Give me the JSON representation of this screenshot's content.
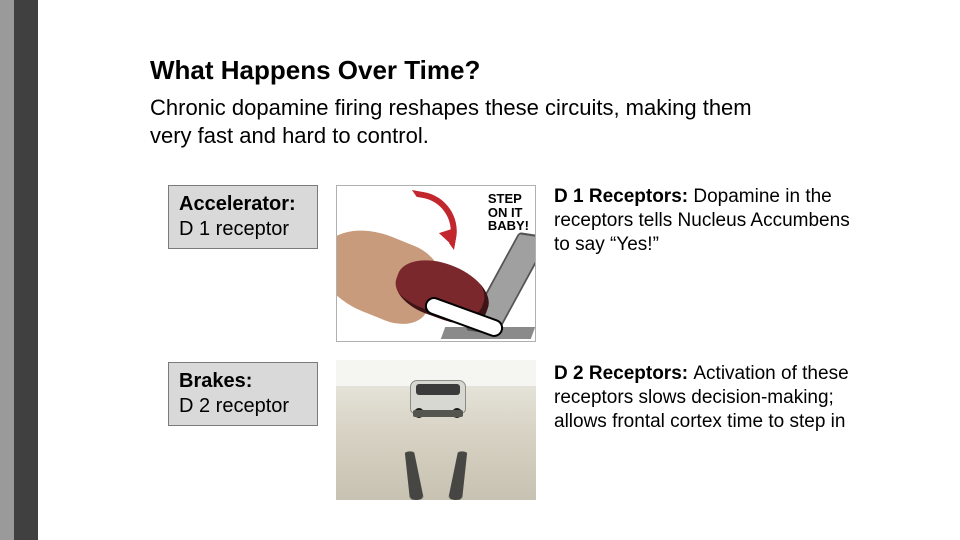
{
  "colors": {
    "stripe_dark": "#404040",
    "stripe_light": "#9a9a9a",
    "label_box_bg": "#d9d9d9",
    "label_box_border": "#7a7a7a",
    "accent_red": "#c1272d",
    "shoe": "#7a282c",
    "text": "#000000",
    "background": "#ffffff"
  },
  "typography": {
    "family": "Arial",
    "title_size_pt": 20,
    "subtitle_size_pt": 17,
    "label_size_pt": 15,
    "desc_size_pt": 14
  },
  "title": "What Happens Over Time?",
  "subtitle": "Chronic dopamine firing reshapes these circuits,  making them very fast and hard to control.",
  "rows": [
    {
      "label_bold": "Accelerator:",
      "label_line": "D 1 receptor",
      "image": {
        "kind": "accelerator-cartoon",
        "caption_lines": [
          "STEP",
          "ON IT",
          "BABY!"
        ]
      },
      "desc_bold": "D 1 Receptors:  ",
      "desc_rest": "Dopamine in the receptors tells Nucleus Accumbens to say “Yes!”"
    },
    {
      "label_bold": "Brakes:",
      "label_line": "D 2 receptor",
      "image": {
        "kind": "braking-car"
      },
      "desc_bold": "D 2 Receptors:  ",
      "desc_rest": "Activation of these receptors slows decision-making; allows frontal cortex time to step in"
    }
  ]
}
